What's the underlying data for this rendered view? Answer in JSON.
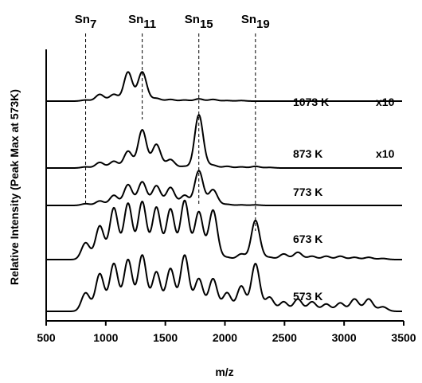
{
  "chart_data": {
    "type": "line",
    "xlabel": "m/z",
    "ylabel": "Relative Intensity (Peak Max at 573K)",
    "xlim": [
      500,
      3500
    ],
    "xticks": [
      "500",
      "1000",
      "1500",
      "2000",
      "2500",
      "3000",
      "3500"
    ],
    "grid": false,
    "legend": "none",
    "cluster_markers": [
      {
        "label": "Sn",
        "sub": "7",
        "x": 831
      },
      {
        "label": "Sn",
        "sub": "11",
        "x": 1306
      },
      {
        "label": "Sn",
        "sub": "15",
        "x": 1781
      },
      {
        "label": "Sn",
        "sub": "19",
        "x": 2256
      }
    ],
    "peak_positions": [
      831,
      950,
      1068,
      1187,
      1306,
      1425,
      1543,
      1662,
      1781,
      1900,
      2018,
      2137,
      2256,
      2375,
      2493,
      2612,
      2731,
      2850,
      2968,
      3087,
      3206,
      3325
    ],
    "series": [
      {
        "label": "1073 K",
        "scale": "x10",
        "values": [
          0.02,
          0.12,
          0.12,
          0.52,
          0.52,
          0.05,
          0.03,
          0.02,
          0.04,
          0.03,
          0.01,
          0.01,
          0.0,
          0.0,
          0.0,
          0.0,
          0.0,
          0.0,
          0.0,
          0.0,
          0.0,
          0.0
        ]
      },
      {
        "label": "873 K",
        "scale": "x10",
        "values": [
          0.02,
          0.1,
          0.12,
          0.3,
          0.68,
          0.42,
          0.15,
          0.03,
          0.95,
          0.05,
          0.03,
          0.02,
          0.03,
          0.01,
          0.0,
          0.0,
          0.0,
          0.0,
          0.0,
          0.0,
          0.0,
          0.0
        ]
      },
      {
        "label": "773 K",
        "scale": "",
        "values": [
          0.03,
          0.08,
          0.18,
          0.37,
          0.42,
          0.35,
          0.32,
          0.18,
          0.62,
          0.28,
          0.02,
          0.01,
          0.01,
          0.0,
          0.0,
          0.0,
          0.0,
          0.0,
          0.0,
          0.0,
          0.0,
          0.0
        ]
      },
      {
        "label": "673 K",
        "scale": "",
        "values": [
          0.3,
          0.6,
          0.92,
          1.0,
          1.03,
          0.93,
          0.9,
          1.05,
          0.85,
          0.88,
          0.04,
          0.1,
          0.7,
          0.04,
          0.1,
          0.13,
          0.06,
          0.06,
          0.06,
          0.04,
          0.04,
          0.02
        ]
      },
      {
        "label": "573 K",
        "scale": "",
        "values": [
          0.33,
          0.67,
          0.85,
          0.92,
          1.0,
          0.7,
          0.76,
          1.0,
          0.58,
          0.58,
          0.33,
          0.45,
          0.85,
          0.25,
          0.17,
          0.22,
          0.17,
          0.13,
          0.15,
          0.22,
          0.22,
          0.08
        ]
      }
    ]
  }
}
